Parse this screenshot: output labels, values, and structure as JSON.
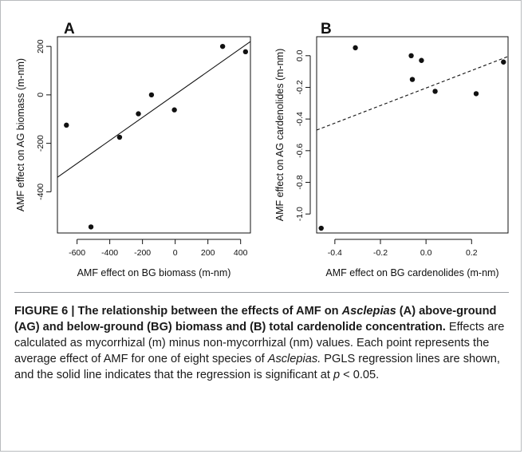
{
  "chart_data": [
    {
      "type": "scatter",
      "panel_label": "A",
      "xlabel": "AMF effect on BG biomass (m-nm)",
      "ylabel": "AMF effect on AG biomass (m-nm)",
      "xlim": [
        -720,
        460
      ],
      "ylim": [
        -570,
        240
      ],
      "xticks": [
        -600,
        -400,
        -200,
        0,
        200,
        400
      ],
      "yticks": [
        -400,
        -200,
        0,
        200
      ],
      "tick_labels_x": [
        "-600",
        "-400",
        "-200",
        "0",
        "200",
        "400"
      ],
      "tick_labels_y": [
        "-400",
        "-200",
        "0",
        "200"
      ],
      "points": [
        {
          "x": -665,
          "y": -125
        },
        {
          "x": -515,
          "y": -545
        },
        {
          "x": -340,
          "y": -175
        },
        {
          "x": -225,
          "y": -78
        },
        {
          "x": -145,
          "y": 0
        },
        {
          "x": -5,
          "y": -62
        },
        {
          "x": 290,
          "y": 200
        },
        {
          "x": 430,
          "y": 178
        }
      ],
      "regression": {
        "style": "solid",
        "x": [
          -720,
          460
        ],
        "y": [
          -340,
          220
        ]
      }
    },
    {
      "type": "scatter",
      "panel_label": "B",
      "xlabel": "AMF effect on BG cardenolides (m-nm)",
      "ylabel": "AMF effect on AG cardenolides (m-nm)",
      "xlim": [
        -0.48,
        0.36
      ],
      "ylim": [
        -1.12,
        0.12
      ],
      "xticks": [
        -0.4,
        -0.2,
        0.0,
        0.2
      ],
      "yticks": [
        -1.0,
        -0.8,
        -0.6,
        -0.4,
        -0.2,
        0.0
      ],
      "tick_labels_x": [
        "-0.4",
        "-0.2",
        "0.0",
        "0.2"
      ],
      "tick_labels_y": [
        "-1.0",
        "-0.8",
        "-0.6",
        "-0.4",
        "-0.2",
        "0.0"
      ],
      "points": [
        {
          "x": -0.46,
          "y": -1.09
        },
        {
          "x": -0.31,
          "y": 0.05
        },
        {
          "x": -0.065,
          "y": 0.0
        },
        {
          "x": -0.06,
          "y": -0.15
        },
        {
          "x": -0.02,
          "y": -0.03
        },
        {
          "x": 0.04,
          "y": -0.225
        },
        {
          "x": 0.22,
          "y": -0.24
        },
        {
          "x": 0.34,
          "y": -0.04
        }
      ],
      "regression": {
        "style": "dashed",
        "x": [
          -0.48,
          0.36
        ],
        "y": [
          -0.47,
          -0.005
        ]
      }
    }
  ],
  "caption": {
    "heading_1": "FIGURE 6 | The relationship between the effects of AMF on ",
    "heading_italic": "Asclepias",
    "heading_2": " (A) above-ground (AG) and below-ground (BG) biomass and (B) total cardenolide concentration.",
    "body_1": " Effects are calculated as mycorrhizal (m) minus non-mycorrhizal (nm) values. Each point represents the average effect of AMF for one of eight species of ",
    "body_italic": "Asclepias.",
    "body_2": " PGLS regression lines are shown, and the solid line indicates that the regression is significant at ",
    "body_p": "p",
    "body_3": " < 0.05."
  }
}
